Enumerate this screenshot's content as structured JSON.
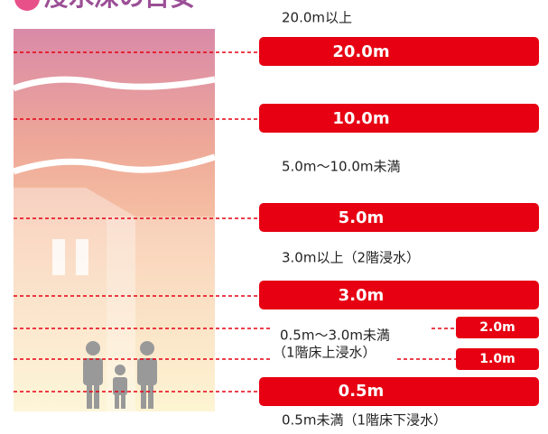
{
  "title": "浸水深の目安",
  "levels": [
    {
      "label": "20.0m"
    },
    {
      "label": "10.0m"
    },
    {
      "label": "5.0m"
    },
    {
      "label": "3.0m"
    },
    {
      "label": "2.0m"
    },
    {
      "label": "1.0m"
    },
    {
      "label": "0.5m"
    }
  ],
  "notes": [
    "20.0m以上",
    "5.0m〜10.0m未満",
    "3.0m以上（2階浸水）",
    "0.5m〜3.0m未満",
    "（1階床上浸水）",
    "0.5m未満（1階床下浸水）"
  ]
}
